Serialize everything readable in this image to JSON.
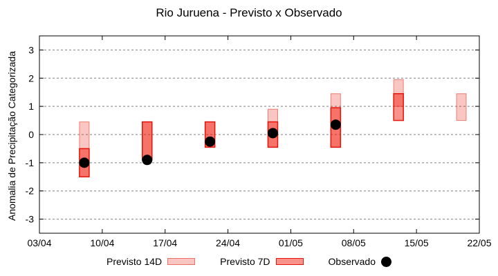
{
  "chart_data": {
    "type": "bar",
    "subtype": "forecast-range-boxes-with-observed-points",
    "title": "Rio Juruena - Previsto x Observado",
    "xlabel": "",
    "ylabel": "Anomalia de Precipitação Categorizada",
    "ylim": [
      -3.5,
      3.5
    ],
    "yticks": [
      3,
      2,
      1,
      0,
      -1,
      -2,
      -3
    ],
    "xlim_days": [
      0,
      49
    ],
    "xticks": [
      {
        "day": 0,
        "label": "03/04"
      },
      {
        "day": 7,
        "label": "10/04"
      },
      {
        "day": 14,
        "label": "17/04"
      },
      {
        "day": 21,
        "label": "24/04"
      },
      {
        "day": 28,
        "label": "01/05"
      },
      {
        "day": 35,
        "label": "08/05"
      },
      {
        "day": 42,
        "label": "15/05"
      },
      {
        "day": 49,
        "label": "22/05"
      }
    ],
    "grid": "horizontal-dashed",
    "legend_position": "bottom-center",
    "bars": [
      {
        "date": "08/04",
        "day": 5,
        "previsto_14d": [
          -1.5,
          0.45
        ],
        "previsto_7d": [
          -1.5,
          -0.5
        ],
        "observado": -1.0
      },
      {
        "date": "15/04",
        "day": 12,
        "previsto_14d": [
          -0.9,
          0.45
        ],
        "previsto_7d": [
          -0.9,
          0.45
        ],
        "observado": -0.9
      },
      {
        "date": "22/04",
        "day": 19,
        "previsto_14d": [
          -0.45,
          0.45
        ],
        "previsto_7d": [
          -0.45,
          0.45
        ],
        "observado": -0.25
      },
      {
        "date": "29/04",
        "day": 26,
        "previsto_14d": [
          -0.45,
          0.9
        ],
        "previsto_7d": [
          -0.45,
          0.45
        ],
        "observado": 0.05
      },
      {
        "date": "06/05",
        "day": 33,
        "previsto_14d": [
          -0.45,
          1.45
        ],
        "previsto_7d": [
          -0.45,
          0.95
        ],
        "observado": 0.35
      },
      {
        "date": "13/05",
        "day": 40,
        "previsto_14d": [
          1.0,
          1.95
        ],
        "previsto_7d": [
          0.5,
          1.45
        ],
        "observado": null
      },
      {
        "date": "20/05",
        "day": 47,
        "previsto_14d": [
          0.5,
          1.45
        ],
        "previsto_7d": null,
        "observado": null
      }
    ]
  },
  "legend": {
    "items": [
      {
        "label": "Previsto 14D",
        "marker": "light-pink-box"
      },
      {
        "label": "Previsto 7D",
        "marker": "red-box"
      },
      {
        "label": "Observado",
        "marker": "black-filled-circle"
      }
    ]
  },
  "colors": {
    "previsto_14d_fill": "rgba(232,18,0,0.24)",
    "previsto_14d_stroke": "rgba(225,45,25,0.55)",
    "previsto_7d_fill": "rgba(240,18,0,0.46)",
    "previsto_7d_stroke": "#e61309",
    "observado": "#000000",
    "grid": "#7f7f7f",
    "axis": "#000000",
    "background": "#ffffff"
  }
}
